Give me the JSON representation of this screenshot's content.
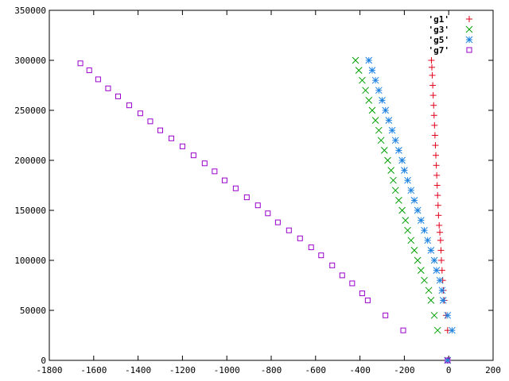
{
  "chart_data": {
    "type": "scatter",
    "xlim": [
      -1800,
      200
    ],
    "ylim": [
      0,
      350000
    ],
    "xticks": [
      -1800,
      -1600,
      -1400,
      -1200,
      -1000,
      -800,
      -600,
      -400,
      -200,
      0,
      200
    ],
    "yticks": [
      0,
      50000,
      100000,
      150000,
      200000,
      250000,
      300000,
      350000
    ],
    "legend_position": "top-right",
    "grid": false,
    "series": [
      {
        "name": "'g1'",
        "marker": "plus",
        "color": "#e0001a",
        "points": [
          [
            -5,
            0
          ],
          [
            -5,
            30000
          ],
          [
            -12,
            45000
          ],
          [
            -20,
            60000
          ],
          [
            -24,
            70000
          ],
          [
            -27,
            80000
          ],
          [
            -30,
            90000
          ],
          [
            -33,
            100000
          ],
          [
            -35,
            110000
          ],
          [
            -37,
            120000
          ],
          [
            -40,
            128000
          ],
          [
            -43,
            135000
          ],
          [
            -46,
            145000
          ],
          [
            -48,
            155000
          ],
          [
            -50,
            165000
          ],
          [
            -52,
            175000
          ],
          [
            -54,
            185000
          ],
          [
            -56,
            195000
          ],
          [
            -58,
            205000
          ],
          [
            -60,
            215000
          ],
          [
            -62,
            225000
          ],
          [
            -64,
            235000
          ],
          [
            -66,
            245000
          ],
          [
            -68,
            255000
          ],
          [
            -70,
            265000
          ],
          [
            -72,
            275000
          ],
          [
            -74,
            285000
          ],
          [
            -76,
            293000
          ],
          [
            -78,
            300000
          ]
        ]
      },
      {
        "name": "'g3'",
        "marker": "cross",
        "color": "#00a000",
        "points": [
          [
            -5,
            0
          ],
          [
            -50,
            30000
          ],
          [
            -65,
            45000
          ],
          [
            -80,
            60000
          ],
          [
            -90,
            70000
          ],
          [
            -110,
            80000
          ],
          [
            -125,
            90000
          ],
          [
            -140,
            100000
          ],
          [
            -155,
            110000
          ],
          [
            -170,
            120000
          ],
          [
            -185,
            130000
          ],
          [
            -195,
            140000
          ],
          [
            -210,
            150000
          ],
          [
            -225,
            160000
          ],
          [
            -240,
            170000
          ],
          [
            -250,
            180000
          ],
          [
            -260,
            190000
          ],
          [
            -275,
            200000
          ],
          [
            -290,
            210000
          ],
          [
            -305,
            220000
          ],
          [
            -315,
            230000
          ],
          [
            -330,
            240000
          ],
          [
            -345,
            250000
          ],
          [
            -360,
            260000
          ],
          [
            -375,
            270000
          ],
          [
            -390,
            280000
          ],
          [
            -405,
            290000
          ],
          [
            -420,
            300000
          ]
        ]
      },
      {
        "name": "'g5'",
        "marker": "star",
        "color": "#1a80e0",
        "points": [
          [
            -5,
            0
          ],
          [
            15,
            30000
          ],
          [
            -5,
            45000
          ],
          [
            -25,
            60000
          ],
          [
            -30,
            70000
          ],
          [
            -40,
            80000
          ],
          [
            -55,
            90000
          ],
          [
            -65,
            100000
          ],
          [
            -80,
            110000
          ],
          [
            -95,
            120000
          ],
          [
            -110,
            130000
          ],
          [
            -125,
            140000
          ],
          [
            -140,
            150000
          ],
          [
            -155,
            160000
          ],
          [
            -170,
            170000
          ],
          [
            -185,
            180000
          ],
          [
            -200,
            190000
          ],
          [
            -210,
            200000
          ],
          [
            -225,
            210000
          ],
          [
            -240,
            220000
          ],
          [
            -255,
            230000
          ],
          [
            -270,
            240000
          ],
          [
            -285,
            250000
          ],
          [
            -300,
            260000
          ],
          [
            -315,
            270000
          ],
          [
            -330,
            280000
          ],
          [
            -345,
            290000
          ],
          [
            -360,
            300000
          ]
        ]
      },
      {
        "name": "'g7'",
        "marker": "square",
        "color": "#9900cc",
        "points": [
          [
            -5,
            0
          ],
          [
            -205,
            30000
          ],
          [
            -285,
            45000
          ],
          [
            -365,
            60000
          ],
          [
            -390,
            67000
          ],
          [
            -435,
            77000
          ],
          [
            -480,
            85000
          ],
          [
            -525,
            95000
          ],
          [
            -575,
            105000
          ],
          [
            -620,
            113000
          ],
          [
            -670,
            122000
          ],
          [
            -720,
            130000
          ],
          [
            -770,
            138000
          ],
          [
            -815,
            147000
          ],
          [
            -860,
            155000
          ],
          [
            -910,
            163000
          ],
          [
            -960,
            172000
          ],
          [
            -1010,
            180000
          ],
          [
            -1055,
            189000
          ],
          [
            -1100,
            197000
          ],
          [
            -1150,
            205000
          ],
          [
            -1200,
            214000
          ],
          [
            -1250,
            222000
          ],
          [
            -1300,
            230000
          ],
          [
            -1345,
            239000
          ],
          [
            -1390,
            247000
          ],
          [
            -1440,
            255000
          ],
          [
            -1490,
            264000
          ],
          [
            -1535,
            272000
          ],
          [
            -1580,
            281000
          ],
          [
            -1620,
            290000
          ],
          [
            -1660,
            297000
          ]
        ]
      }
    ]
  }
}
